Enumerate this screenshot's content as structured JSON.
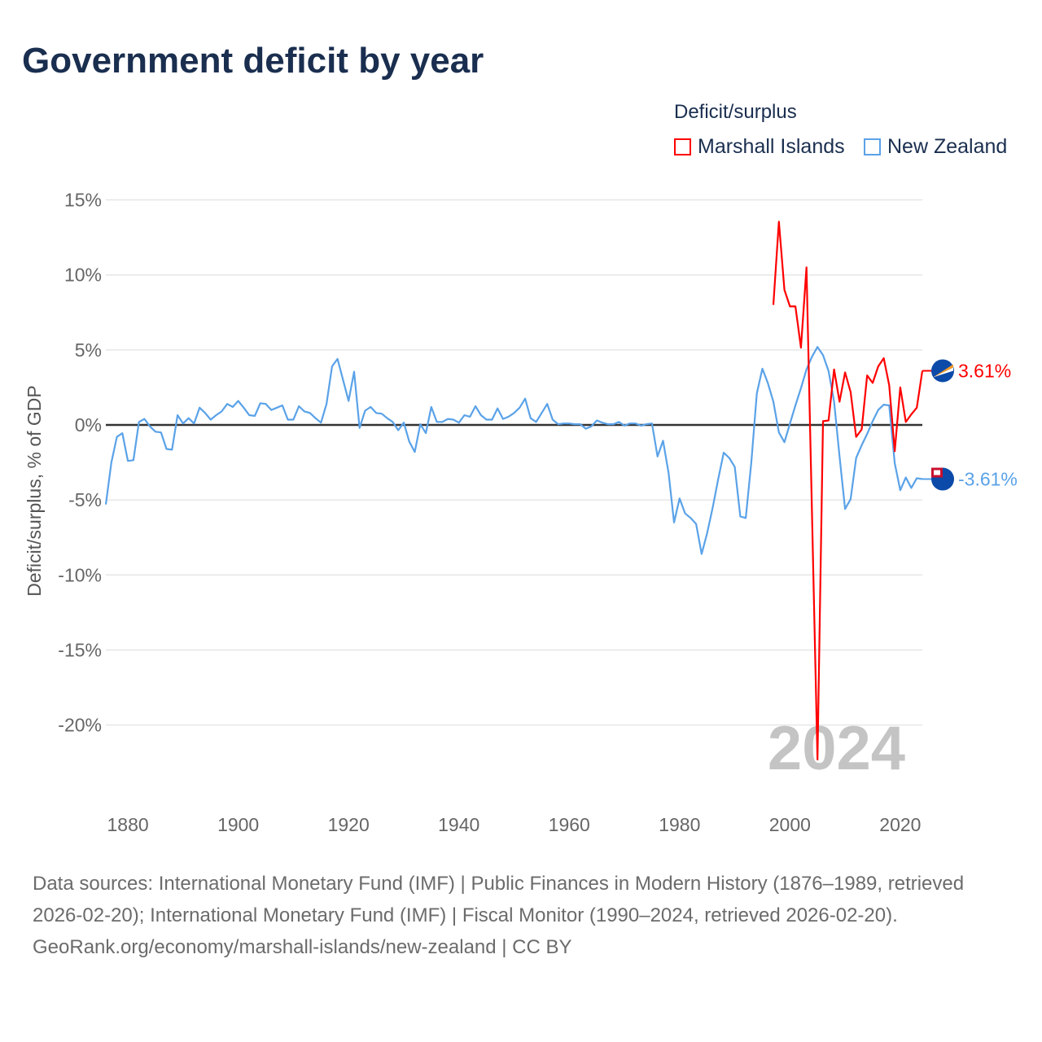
{
  "title": "Government deficit by year",
  "legend": {
    "title": "Deficit/surplus",
    "items": [
      {
        "name": "Marshall Islands",
        "color": "#ff0000"
      },
      {
        "name": "New Zealand",
        "color": "#5aa2e8"
      }
    ]
  },
  "year_watermark": "2024",
  "footer": {
    "sources": "Data sources: International Monetary Fund (IMF) | Public Finances in Modern History (1876–1989, retrieved 2026-02-20); International Monetary Fund (IMF) | Fiscal Monitor (1990–2024, retrieved 2026-02-20).",
    "credit": "GeoRank.org/economy/marshall-islands/new-zealand | CC BY"
  },
  "chart_data": {
    "type": "line",
    "title": "Government deficit by year",
    "xlabel": "",
    "ylabel": "Deficit/surplus, % of GDP",
    "xlim": [
      1876,
      2024
    ],
    "ylim": [
      -23,
      16
    ],
    "xticks": [
      1880,
      1900,
      1920,
      1940,
      1960,
      1980,
      2000,
      2020
    ],
    "yticks": [
      15,
      10,
      5,
      0,
      -5,
      -10,
      -15,
      -20
    ],
    "ytick_labels": [
      "15%",
      "10%",
      "5%",
      "0%",
      "-5%",
      "-10%",
      "-15%",
      "-20%"
    ],
    "grid": true,
    "legend_position": "top-right",
    "series": [
      {
        "name": "Marshall Islands",
        "color": "#ff0000",
        "end_label": "3.61%",
        "start_year": 1997,
        "values": [
          8.0,
          13.55,
          9.0,
          7.9,
          7.9,
          5.15,
          10.5,
          -6.0,
          -22.3,
          0.25,
          0.3,
          3.7,
          1.55,
          3.5,
          2.2,
          -0.8,
          -0.3,
          3.3,
          2.8,
          3.9,
          4.45,
          2.65,
          -1.75,
          2.5,
          0.2,
          0.7,
          1.15,
          3.61
        ]
      },
      {
        "name": "New Zealand",
        "color": "#5aa2e8",
        "end_label": "-3.61%",
        "start_year": 1876,
        "values": [
          -5.3,
          -2.5,
          -0.8,
          -0.55,
          -2.4,
          -2.35,
          0.2,
          0.4,
          -0.1,
          -0.45,
          -0.5,
          -1.6,
          -1.65,
          0.65,
          0.1,
          0.45,
          0.1,
          1.15,
          0.8,
          0.35,
          0.65,
          0.9,
          1.4,
          1.2,
          1.6,
          1.15,
          0.65,
          0.6,
          1.45,
          1.4,
          1.0,
          1.15,
          1.3,
          0.35,
          0.35,
          1.25,
          0.9,
          0.8,
          0.45,
          0.15,
          1.4,
          3.9,
          4.4,
          3.0,
          1.6,
          3.55,
          -0.2,
          0.95,
          1.2,
          0.8,
          0.75,
          0.45,
          0.2,
          -0.35,
          0.15,
          -1.1,
          -1.8,
          0.05,
          -0.55,
          1.2,
          0.2,
          0.2,
          0.4,
          0.35,
          0.15,
          0.65,
          0.55,
          1.25,
          0.65,
          0.35,
          0.35,
          1.1,
          0.4,
          0.55,
          0.8,
          1.15,
          1.75,
          0.45,
          0.2,
          0.8,
          1.4,
          0.35,
          0.05,
          0.1,
          0.1,
          0.05,
          0.05,
          -0.25,
          -0.1,
          0.3,
          0.15,
          0.05,
          0.05,
          0.2,
          -0.05,
          0.1,
          0.1,
          -0.05,
          0.05,
          0.1,
          -2.1,
          -1.05,
          -3.2,
          -6.5,
          -4.9,
          -5.9,
          -6.2,
          -6.6,
          -8.6,
          -7.2,
          -5.5,
          -3.6,
          -1.85,
          -2.2,
          -2.8,
          -6.1,
          -6.2,
          -2.5,
          2.1,
          3.75,
          2.8,
          1.55,
          -0.5,
          -1.15,
          0.1,
          1.3,
          2.45,
          3.7,
          4.55,
          5.2,
          4.65,
          3.6,
          1.55,
          -2.1,
          -5.6,
          -4.95,
          -2.2,
          -1.35,
          -0.6,
          0.25,
          1.0,
          1.35,
          1.3,
          -2.55,
          -4.35,
          -3.5,
          -4.2,
          -3.55,
          -3.61
        ]
      }
    ]
  }
}
